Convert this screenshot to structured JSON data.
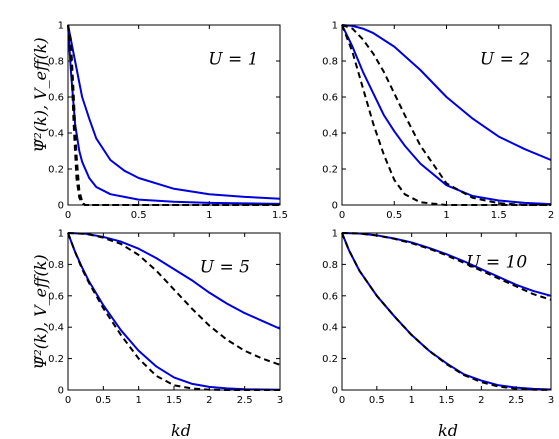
{
  "figure": {
    "shared_ylabel": "Ψ̃²(k), V_eff(k)",
    "shared_xlabel": "kd"
  },
  "colors": {
    "solid": "#0000dd",
    "dashed": "#000000",
    "axes": "#000000"
  },
  "chart_data": [
    {
      "type": "line",
      "annotation": "U = 1",
      "xlim": [
        0,
        1.5
      ],
      "ylim": [
        0,
        1
      ],
      "xticks": [
        "0",
        "0.5",
        "1",
        "1.5"
      ],
      "yticks": [
        "0",
        "0.2",
        "0.4",
        "0.6",
        "0.8",
        "1"
      ],
      "series": [
        {
          "style": "solid",
          "x": [
            0,
            0.05,
            0.1,
            0.15,
            0.2,
            0.3,
            0.4,
            0.5,
            0.75,
            1.0,
            1.25,
            1.5
          ],
          "y": [
            1.0,
            0.8,
            0.6,
            0.48,
            0.37,
            0.25,
            0.19,
            0.15,
            0.09,
            0.06,
            0.045,
            0.035
          ]
        },
        {
          "style": "solid",
          "x": [
            0,
            0.02,
            0.05,
            0.08,
            0.1,
            0.15,
            0.2,
            0.3,
            0.5,
            0.75,
            1.0,
            1.5
          ],
          "y": [
            1.0,
            0.75,
            0.45,
            0.3,
            0.24,
            0.15,
            0.1,
            0.06,
            0.03,
            0.018,
            0.012,
            0.006
          ]
        },
        {
          "style": "dashed",
          "x": [
            0,
            0.02,
            0.04,
            0.06,
            0.08,
            0.1,
            0.12,
            0.15,
            0.2,
            1.5
          ],
          "y": [
            1.0,
            0.92,
            0.62,
            0.28,
            0.08,
            0.02,
            0.0,
            0.0,
            0.0,
            0.0
          ]
        },
        {
          "style": "dashed",
          "x": [
            0,
            0.02,
            0.04,
            0.06,
            0.08,
            0.1,
            0.12,
            0.15,
            0.2,
            1.5
          ],
          "y": [
            1.0,
            0.85,
            0.45,
            0.15,
            0.04,
            0.01,
            0.0,
            0.0,
            0.0,
            0.0
          ]
        }
      ]
    },
    {
      "type": "line",
      "annotation": "U = 2",
      "xlim": [
        0,
        2
      ],
      "ylim": [
        0,
        1
      ],
      "xticks": [
        "0",
        "0.5",
        "1",
        "1.5",
        "2"
      ],
      "yticks": [
        "0",
        "0.2",
        "0.4",
        "0.6",
        "0.8",
        "1"
      ],
      "series": [
        {
          "style": "solid",
          "x": [
            0,
            0.1,
            0.2,
            0.3,
            0.5,
            0.75,
            1.0,
            1.25,
            1.5,
            1.75,
            2.0
          ],
          "y": [
            1.0,
            0.995,
            0.98,
            0.955,
            0.88,
            0.75,
            0.6,
            0.48,
            0.38,
            0.31,
            0.25
          ]
        },
        {
          "style": "solid",
          "x": [
            0,
            0.1,
            0.2,
            0.3,
            0.4,
            0.5,
            0.6,
            0.75,
            1.0,
            1.25,
            1.5,
            1.75,
            2.0
          ],
          "y": [
            1.0,
            0.88,
            0.74,
            0.62,
            0.5,
            0.41,
            0.33,
            0.23,
            0.11,
            0.05,
            0.025,
            0.012,
            0.005
          ]
        },
        {
          "style": "dashed",
          "x": [
            0,
            0.1,
            0.2,
            0.3,
            0.4,
            0.5,
            0.6,
            0.75,
            1.0,
            1.25,
            1.5,
            1.75,
            2.0
          ],
          "y": [
            1.0,
            0.98,
            0.92,
            0.84,
            0.74,
            0.62,
            0.5,
            0.33,
            0.12,
            0.04,
            0.01,
            0.0,
            0.0
          ]
        },
        {
          "style": "dashed",
          "x": [
            0,
            0.1,
            0.2,
            0.3,
            0.4,
            0.5,
            0.6,
            0.75,
            1.0,
            1.5,
            2.0
          ],
          "y": [
            1.0,
            0.85,
            0.65,
            0.45,
            0.28,
            0.14,
            0.06,
            0.015,
            0.0,
            0.0,
            0.0
          ]
        }
      ]
    },
    {
      "type": "line",
      "annotation": "U = 5",
      "xlim": [
        0,
        3
      ],
      "ylim": [
        0,
        1
      ],
      "xticks": [
        "0",
        "0.5",
        "1",
        "1.5",
        "2",
        "2.5",
        "3"
      ],
      "yticks": [
        "0",
        "0.2",
        "0.4",
        "0.6",
        "0.8",
        "1"
      ],
      "series": [
        {
          "style": "solid",
          "x": [
            0,
            0.25,
            0.5,
            0.75,
            1.0,
            1.25,
            1.5,
            1.75,
            2.0,
            2.25,
            2.5,
            2.75,
            3.0
          ],
          "y": [
            1.0,
            0.995,
            0.975,
            0.945,
            0.9,
            0.84,
            0.77,
            0.7,
            0.62,
            0.55,
            0.49,
            0.44,
            0.39
          ]
        },
        {
          "style": "dashed",
          "x": [
            0,
            0.25,
            0.5,
            0.75,
            1.0,
            1.25,
            1.5,
            1.75,
            2.0,
            2.25,
            2.5,
            2.75,
            3.0
          ],
          "y": [
            1.0,
            0.995,
            0.97,
            0.93,
            0.86,
            0.76,
            0.64,
            0.52,
            0.41,
            0.32,
            0.25,
            0.2,
            0.16
          ]
        },
        {
          "style": "solid",
          "x": [
            0,
            0.1,
            0.2,
            0.3,
            0.5,
            0.75,
            1.0,
            1.25,
            1.5,
            1.75,
            2.0,
            2.25,
            2.5,
            2.75,
            3.0
          ],
          "y": [
            1.0,
            0.88,
            0.78,
            0.69,
            0.54,
            0.38,
            0.25,
            0.15,
            0.08,
            0.04,
            0.02,
            0.01,
            0.005,
            0.003,
            0.002
          ]
        },
        {
          "style": "dashed",
          "x": [
            0,
            0.1,
            0.2,
            0.3,
            0.5,
            0.75,
            1.0,
            1.25,
            1.5,
            1.75,
            2.0,
            2.25,
            2.5,
            2.75,
            3.0
          ],
          "y": [
            1.0,
            0.88,
            0.77,
            0.68,
            0.52,
            0.35,
            0.2,
            0.09,
            0.03,
            0.01,
            0.002,
            0.0,
            0.0,
            0.0,
            0.0
          ]
        }
      ]
    },
    {
      "type": "line",
      "annotation": "U = 10",
      "xlim": [
        0,
        3
      ],
      "ylim": [
        0,
        1
      ],
      "xticks": [
        "0",
        "0.5",
        "1",
        "1.5",
        "2",
        "2.5",
        "3"
      ],
      "yticks": [
        "0",
        "0.2",
        "0.4",
        "0.6",
        "0.8",
        "1"
      ],
      "series": [
        {
          "style": "solid",
          "x": [
            0,
            0.25,
            0.5,
            0.75,
            1.0,
            1.25,
            1.5,
            1.75,
            2.0,
            2.25,
            2.5,
            2.75,
            3.0
          ],
          "y": [
            1.0,
            0.997,
            0.985,
            0.965,
            0.94,
            0.905,
            0.865,
            0.82,
            0.77,
            0.72,
            0.67,
            0.63,
            0.6
          ]
        },
        {
          "style": "dashed",
          "x": [
            0,
            0.25,
            0.5,
            0.75,
            1.0,
            1.25,
            1.5,
            1.75,
            2.0,
            2.25,
            2.5,
            2.75,
            3.0
          ],
          "y": [
            1.0,
            0.997,
            0.984,
            0.963,
            0.935,
            0.9,
            0.858,
            0.81,
            0.76,
            0.71,
            0.66,
            0.61,
            0.575
          ]
        },
        {
          "style": "solid",
          "x": [
            0,
            0.1,
            0.25,
            0.5,
            0.75,
            1.0,
            1.25,
            1.5,
            1.75,
            2.0,
            2.25,
            2.5,
            2.75,
            3.0
          ],
          "y": [
            1.0,
            0.89,
            0.76,
            0.6,
            0.47,
            0.35,
            0.25,
            0.17,
            0.1,
            0.06,
            0.03,
            0.015,
            0.007,
            0.003
          ]
        },
        {
          "style": "dashed",
          "x": [
            0,
            0.1,
            0.25,
            0.5,
            0.75,
            1.0,
            1.25,
            1.5,
            1.75,
            2.0,
            2.25,
            2.5,
            2.75,
            3.0
          ],
          "y": [
            1.0,
            0.89,
            0.76,
            0.6,
            0.47,
            0.35,
            0.25,
            0.165,
            0.095,
            0.05,
            0.022,
            0.008,
            0.002,
            0.0
          ]
        }
      ]
    }
  ]
}
